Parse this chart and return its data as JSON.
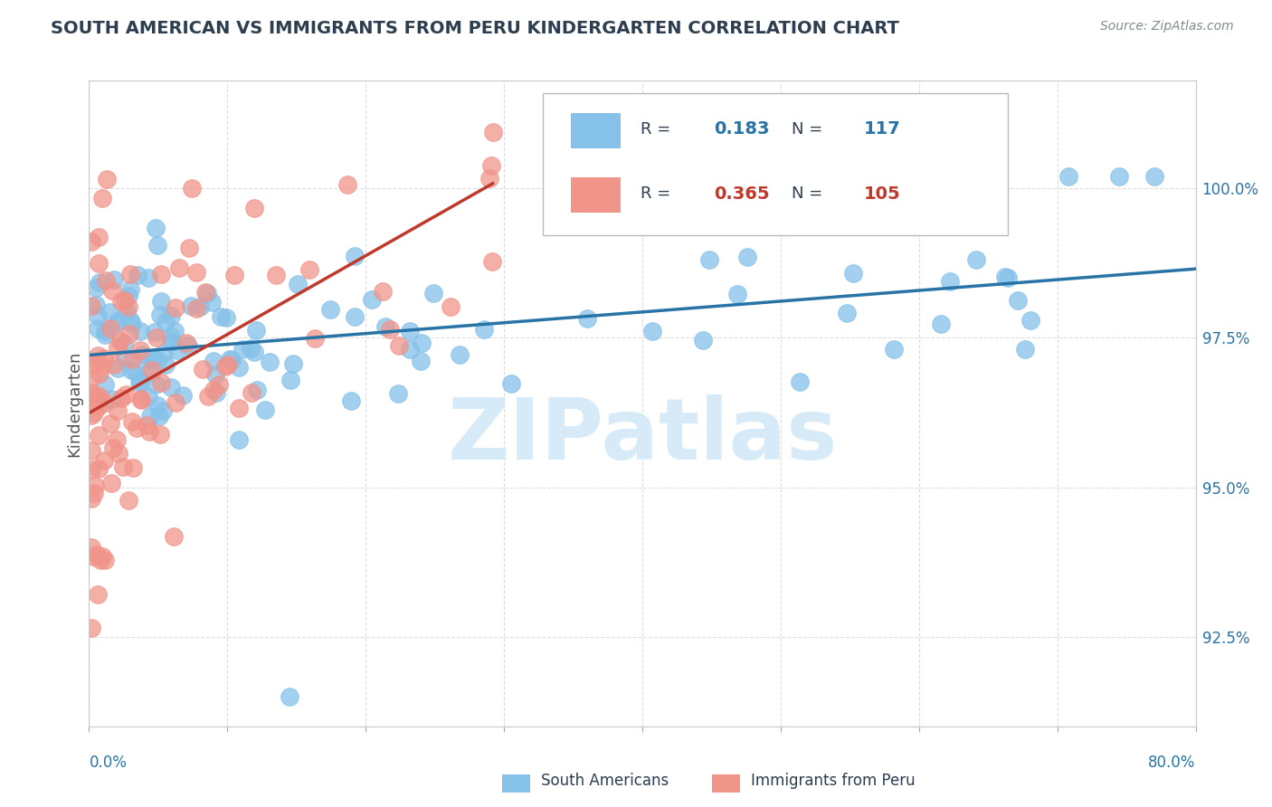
{
  "title": "SOUTH AMERICAN VS IMMIGRANTS FROM PERU KINDERGARTEN CORRELATION CHART",
  "source_text": "Source: ZipAtlas.com",
  "ylabel": "Kindergarten",
  "xlim": [
    0.0,
    80.0
  ],
  "ylim": [
    91.0,
    101.8
  ],
  "yticks_right": [
    92.5,
    95.0,
    97.5,
    100.0
  ],
  "ytick_labels_right": [
    "92.5%",
    "95.0%",
    "97.5%",
    "100.0%"
  ],
  "legend_blue_r": "0.183",
  "legend_blue_n": "117",
  "legend_pink_r": "0.365",
  "legend_pink_n": "105",
  "blue_color": "#85C1E9",
  "pink_color": "#F1948A",
  "blue_line_color": "#2874A6",
  "pink_line_color": "#C0392B",
  "watermark": "ZIPatlas",
  "watermark_color": "#D6EAF8",
  "background_color": "#FFFFFF",
  "grid_color": "#DDDDDD",
  "title_color": "#2C3E50",
  "source_color": "#7F8C8D",
  "axis_label_color": "#2874A6",
  "ylabel_color": "#555555",
  "legend_text_color": "#2C3E50"
}
